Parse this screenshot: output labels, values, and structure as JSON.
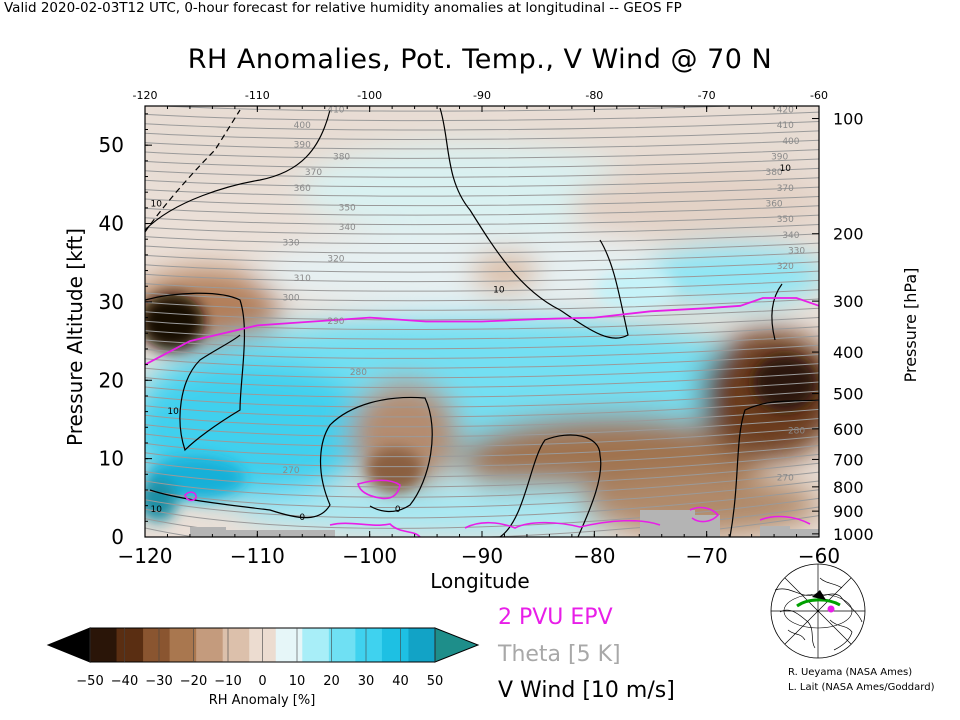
{
  "valid_line": "Valid 2020-02-03T12 UTC, 0-hour forecast for relative humidity anomalies at longitudinal -- GEOS FP",
  "legend": {
    "epv": "2 PVU EPV",
    "theta": "Theta [5 K]",
    "vwind": "V Wind [10 m/s]"
  },
  "credits": {
    "line1": "R. Ueyama (NASA Ames)",
    "line2": "L. Lait (NASA Ames/Goddard)"
  },
  "colors": {
    "epv": "#e81ee8",
    "theta": "#a8a8a8",
    "vwind": "#000000",
    "terrain": "#b4b4b4"
  },
  "chart_data": {
    "type": "heatmap",
    "title": "RH Anomalies, Pot. Temp., V Wind @ 70 N",
    "xlabel": "Longitude",
    "ylabel_left": "Pressure Altitude [kft]",
    "ylabel_right": "Pressure [hPa]",
    "xlim": [
      -120,
      -60
    ],
    "ylim": [
      0,
      55
    ],
    "x_ticks_bottom": [
      "−120",
      "−110",
      "−100",
      "−90",
      "−80",
      "−70",
      "−60"
    ],
    "x_ticks_top": [
      "-120",
      "-110",
      "-100",
      "-90",
      "-80",
      "-70",
      "-60"
    ],
    "y_ticks_left": [
      0,
      10,
      20,
      30,
      40,
      50
    ],
    "pressure_ticks": [
      {
        "label": "100",
        "kft": 53.4
      },
      {
        "label": "200",
        "kft": 38.7
      },
      {
        "label": "300",
        "kft": 30.1
      },
      {
        "label": "400",
        "kft": 23.6
      },
      {
        "label": "500",
        "kft": 18.3
      },
      {
        "label": "600",
        "kft": 13.8
      },
      {
        "label": "700",
        "kft": 9.9
      },
      {
        "label": "800",
        "kft": 6.4
      },
      {
        "label": "900",
        "kft": 3.3
      },
      {
        "label": "1000",
        "kft": 0.4
      }
    ],
    "colorbar": {
      "label": "RH Anomaly [%]",
      "min": -50,
      "max": 50,
      "tick_labels": [
        "−50",
        "−40",
        "−30",
        "−20",
        "−10",
        "0",
        "10",
        "20",
        "30",
        "40",
        "50"
      ],
      "colors": [
        "#2a1508",
        "#5a2e12",
        "#8a5530",
        "#a9774f",
        "#c49b7d",
        "#dcc0ab",
        "#ecdcd0",
        "#e6f6f8",
        "#a8eef8",
        "#6fe0f3",
        "#3fd2ef",
        "#1ec0e3",
        "#12a3c6"
      ],
      "end_colors": [
        "#000000",
        "#1e8e8a"
      ]
    },
    "theta_contours": {
      "interval_K": 5,
      "labeled": [
        {
          "label": "270",
          "x": -107,
          "y": 8.5
        },
        {
          "label": "270",
          "x": -63,
          "y": 7.5
        },
        {
          "label": "280",
          "x": -101,
          "y": 21
        },
        {
          "label": "280",
          "x": -62,
          "y": 13.5
        },
        {
          "label": "290",
          "x": -103,
          "y": 27.5
        },
        {
          "label": "300",
          "x": -107,
          "y": 30.5
        },
        {
          "label": "310",
          "x": -106,
          "y": 33
        },
        {
          "label": "320",
          "x": -103,
          "y": 35.5
        },
        {
          "label": "320",
          "x": -63,
          "y": 34.5
        },
        {
          "label": "330",
          "x": -107,
          "y": 37.5
        },
        {
          "label": "330",
          "x": -62,
          "y": 36.5
        },
        {
          "label": "340",
          "x": -102,
          "y": 39.5
        },
        {
          "label": "340",
          "x": -62.5,
          "y": 38.5
        },
        {
          "label": "350",
          "x": -102,
          "y": 42
        },
        {
          "label": "350",
          "x": -63,
          "y": 40.5
        },
        {
          "label": "360",
          "x": -106,
          "y": 44.5
        },
        {
          "label": "360",
          "x": -64,
          "y": 42.5
        },
        {
          "label": "370",
          "x": -105,
          "y": 46.5
        },
        {
          "label": "370",
          "x": -63,
          "y": 44.5
        },
        {
          "label": "380",
          "x": -102.5,
          "y": 48.5
        },
        {
          "label": "380",
          "x": -64,
          "y": 46.5
        },
        {
          "label": "390",
          "x": -106,
          "y": 50
        },
        {
          "label": "390",
          "x": -63.5,
          "y": 48.5
        },
        {
          "label": "400",
          "x": -106,
          "y": 52.5
        },
        {
          "label": "400",
          "x": -62.5,
          "y": 50.5
        },
        {
          "label": "410",
          "x": -103,
          "y": 54.5
        },
        {
          "label": "410",
          "x": -63,
          "y": 52.5
        },
        {
          "label": "420",
          "x": -63,
          "y": 54.5
        }
      ]
    },
    "vwind_labels": [
      {
        "label": "10",
        "x": -119,
        "y": 42.5
      },
      {
        "label": "10",
        "x": -88.5,
        "y": 31.5
      },
      {
        "label": "10",
        "x": -63,
        "y": 47
      },
      {
        "label": "10",
        "x": -117.5,
        "y": 16
      },
      {
        "label": "0",
        "x": -106,
        "y": 2.5
      },
      {
        "label": "0",
        "x": -97.5,
        "y": 3.5
      },
      {
        "label": "10",
        "x": -119,
        "y": 3.5
      }
    ],
    "epv_2pvu_tropopause": [
      [
        -120,
        22
      ],
      [
        -118,
        23.5
      ],
      [
        -116,
        25
      ],
      [
        -113,
        26
      ],
      [
        -110,
        27
      ],
      [
        -105,
        27.5
      ],
      [
        -100,
        28
      ],
      [
        -95,
        27.5
      ],
      [
        -90,
        27.5
      ],
      [
        -85,
        27.8
      ],
      [
        -80,
        28
      ],
      [
        -75,
        28.8
      ],
      [
        -70,
        29.2
      ],
      [
        -67,
        29.5
      ],
      [
        -65,
        30.5
      ],
      [
        -62,
        30.5
      ],
      [
        -60,
        29.5
      ]
    ]
  }
}
